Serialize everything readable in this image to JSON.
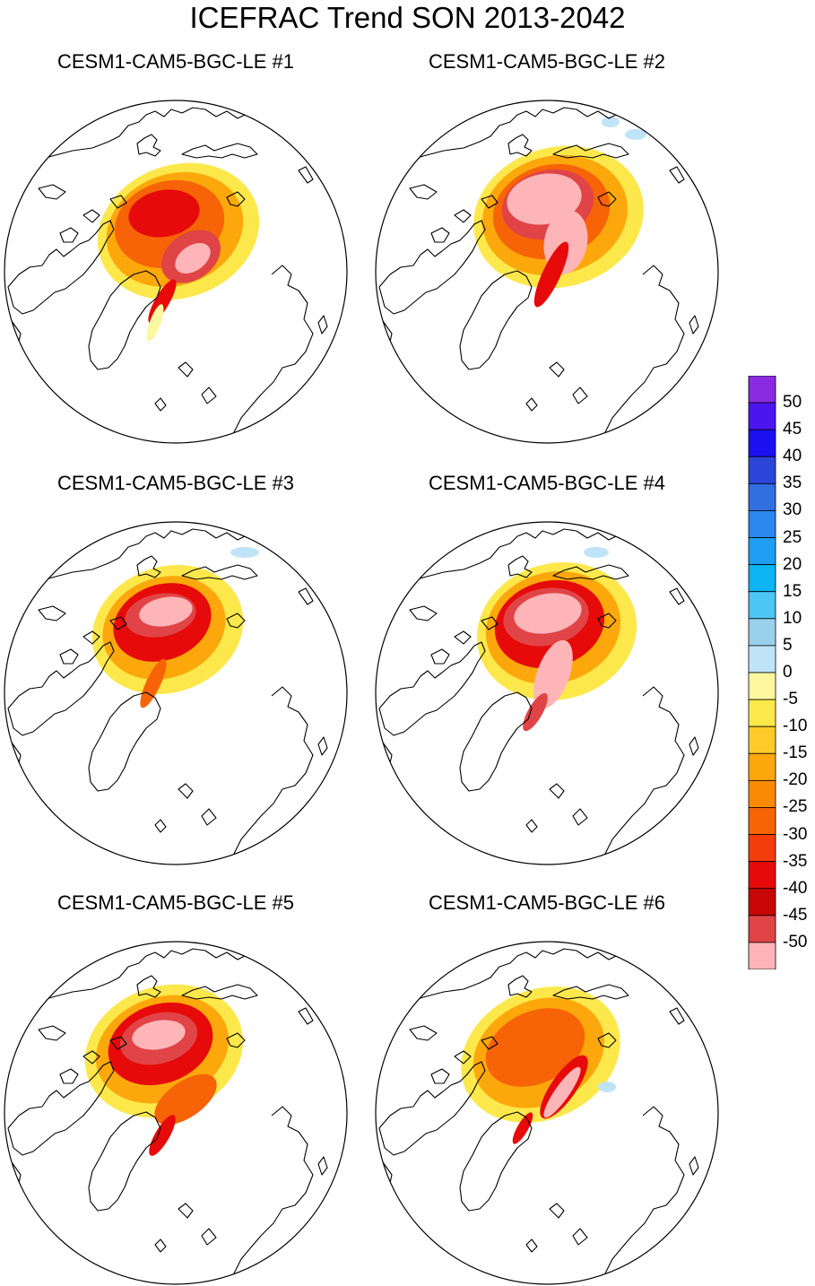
{
  "title": "ICEFRAC Trend SON 2013-2042",
  "panels": [
    {
      "title": "CESM1-CAM5-BGC-LE #1",
      "variant": 1
    },
    {
      "title": "CESM1-CAM5-BGC-LE #2",
      "variant": 2
    },
    {
      "title": "CESM1-CAM5-BGC-LE #3",
      "variant": 3
    },
    {
      "title": "CESM1-CAM5-BGC-LE #4",
      "variant": 4
    },
    {
      "title": "CESM1-CAM5-BGC-LE #5",
      "variant": 5
    },
    {
      "title": "CESM1-CAM5-BGC-LE #6",
      "variant": 6
    }
  ],
  "colorbar": {
    "labels": [
      "50",
      "45",
      "40",
      "35",
      "30",
      "25",
      "20",
      "15",
      "10",
      "5",
      "0",
      "-5",
      "-10",
      "-15",
      "-20",
      "-25",
      "-30",
      "-35",
      "-40",
      "-45",
      "-50"
    ],
    "colors": [
      "#8a2be2",
      "#4b16ee",
      "#1a10f0",
      "#2a45d8",
      "#2f6fe0",
      "#2a88ee",
      "#1f9ef3",
      "#0cb4f2",
      "#4cc6f2",
      "#9ad0ec",
      "#c0e4f7",
      "#fdf7a0",
      "#fde84c",
      "#fdcb29",
      "#fca80c",
      "#fa8a06",
      "#f76307",
      "#f33d0a",
      "#e60a0a",
      "#c80606",
      "#e04446",
      "#fdb5b8"
    ]
  }
}
